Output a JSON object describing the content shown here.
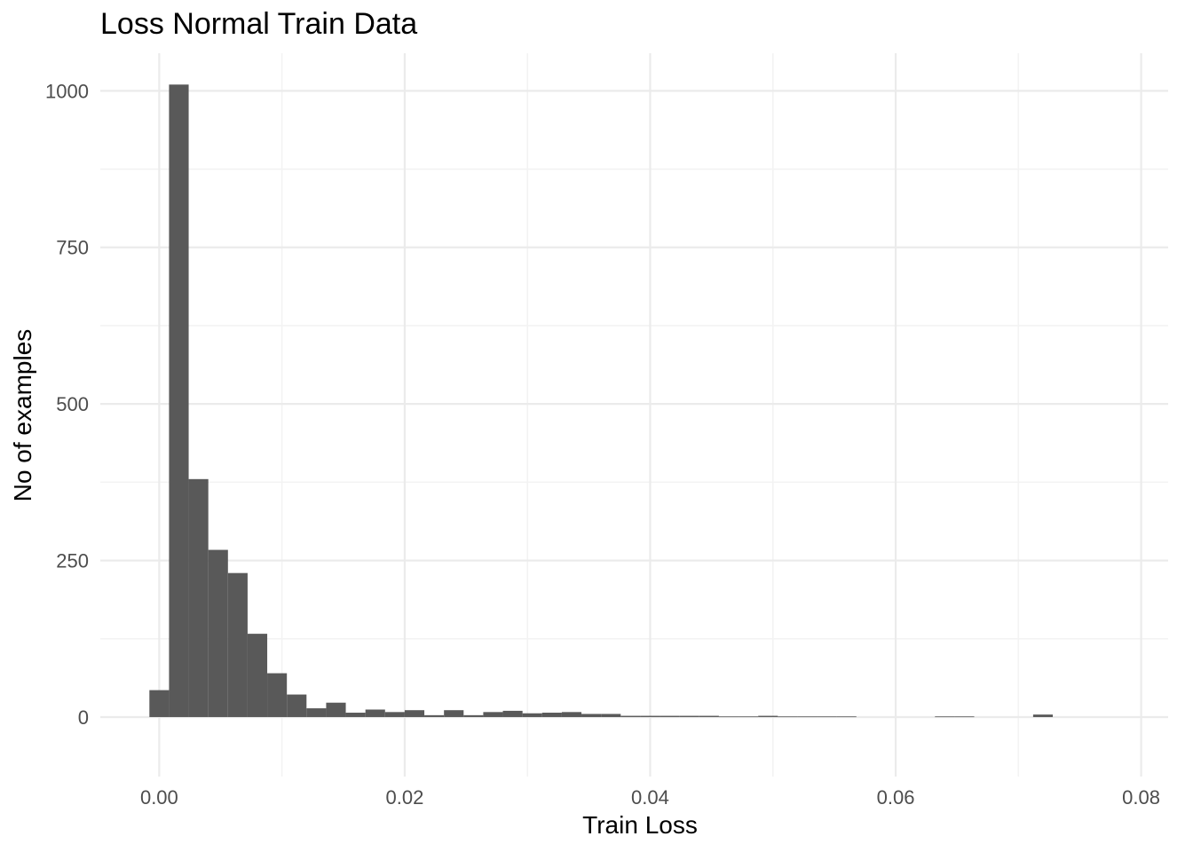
{
  "chart_data": {
    "type": "bar",
    "title": "Loss Normal Train Data",
    "xlabel": "Train Loss",
    "ylabel": "No of examples",
    "xlim": [
      -0.0048,
      0.0822
    ],
    "ylim": [
      -95,
      1060
    ],
    "x_ticks": [
      0.0,
      0.02,
      0.04,
      0.06,
      0.08
    ],
    "x_tick_labels": [
      "0.00",
      "0.02",
      "0.04",
      "0.06",
      "0.08"
    ],
    "y_ticks": [
      0,
      250,
      500,
      750,
      1000
    ],
    "y_tick_labels": [
      "0",
      "250",
      "500",
      "750",
      "1000"
    ],
    "grid": true,
    "bar_color": "#595959",
    "bin_width": 0.0016,
    "bin_start": -0.0008,
    "values": [
      43,
      1010,
      380,
      267,
      230,
      133,
      70,
      36,
      14,
      23,
      7,
      12,
      8,
      11,
      3,
      11,
      3,
      8,
      10,
      6,
      7,
      8,
      5,
      5,
      2,
      2,
      2,
      2,
      2,
      1,
      1,
      2,
      1,
      1,
      1,
      1,
      0,
      0,
      0,
      0,
      1,
      1,
      0,
      0,
      0,
      4,
      0,
      0,
      0,
      0,
      0,
      0,
      0,
      0,
      0,
      0,
      0,
      0,
      0,
      0,
      0,
      1
    ]
  }
}
